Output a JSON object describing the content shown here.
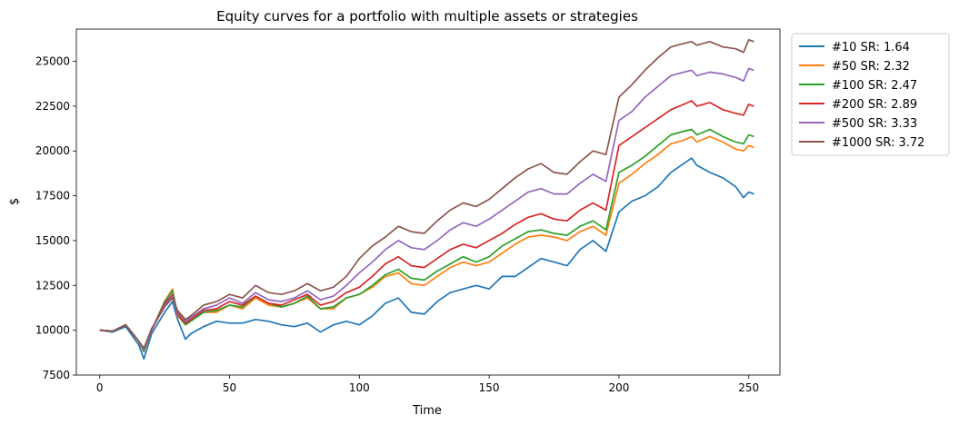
{
  "chart_data": {
    "type": "line",
    "title": "Equity curves for a portfolio with multiple assets or strategies",
    "xlabel": "Time",
    "ylabel": "$",
    "xlim": [
      -9,
      262
    ],
    "ylim": [
      7500,
      26800
    ],
    "xticks": [
      0,
      50,
      100,
      150,
      200,
      250
    ],
    "yticks": [
      7500,
      10000,
      12500,
      15000,
      17500,
      20000,
      22500,
      25000
    ],
    "grid": false,
    "legend_position": "outside-top-right",
    "x_points": [
      0,
      5,
      10,
      15,
      17,
      20,
      25,
      28,
      30,
      33,
      35,
      40,
      45,
      50,
      55,
      60,
      65,
      70,
      75,
      80,
      85,
      90,
      95,
      100,
      105,
      110,
      115,
      120,
      125,
      130,
      135,
      140,
      145,
      150,
      155,
      160,
      165,
      170,
      175,
      180,
      185,
      190,
      195,
      200,
      205,
      210,
      215,
      220,
      225,
      228,
      230,
      235,
      240,
      245,
      248,
      250,
      252
    ],
    "series": [
      {
        "name": "#10 SR: 1.64",
        "color": "#1f77b4",
        "values": [
          10000,
          9900,
          10200,
          9200,
          8400,
          9800,
          11000,
          11600,
          10600,
          9500,
          9800,
          10200,
          10500,
          10400,
          10400,
          10600,
          10500,
          10300,
          10200,
          10400,
          9900,
          10300,
          10500,
          10300,
          10800,
          11500,
          11800,
          11000,
          10900,
          11600,
          12100,
          12300,
          12500,
          12300,
          13000,
          13000,
          13500,
          14000,
          13800,
          13600,
          14500,
          15000,
          14400,
          16600,
          17200,
          17500,
          18000,
          18800,
          19300,
          19600,
          19200,
          18800,
          18500,
          18000,
          17400,
          17700,
          17600
        ]
      },
      {
        "name": "#50 SR: 2.32",
        "color": "#ff7f0e",
        "values": [
          10000,
          9950,
          10300,
          9400,
          8800,
          10000,
          11600,
          12300,
          10800,
          10300,
          10500,
          11000,
          11000,
          11400,
          11200,
          11800,
          11400,
          11300,
          11500,
          11800,
          11200,
          11200,
          11800,
          12000,
          12400,
          13000,
          13200,
          12600,
          12500,
          13000,
          13500,
          13800,
          13600,
          13800,
          14300,
          14800,
          15200,
          15300,
          15200,
          15000,
          15500,
          15800,
          15300,
          18200,
          18700,
          19300,
          19800,
          20400,
          20600,
          20800,
          20500,
          20800,
          20500,
          20100,
          20000,
          20300,
          20200
        ]
      },
      {
        "name": "#100 SR: 2.47",
        "color": "#2ca02c",
        "values": [
          10000,
          9950,
          10300,
          9400,
          8800,
          10000,
          11600,
          12200,
          10900,
          10300,
          10500,
          11000,
          11100,
          11400,
          11300,
          11900,
          11500,
          11300,
          11500,
          11900,
          11200,
          11300,
          11800,
          12000,
          12500,
          13100,
          13400,
          12900,
          12800,
          13300,
          13700,
          14100,
          13800,
          14100,
          14700,
          15100,
          15500,
          15600,
          15400,
          15300,
          15800,
          16100,
          15600,
          18800,
          19200,
          19700,
          20300,
          20900,
          21100,
          21200,
          20900,
          21200,
          20800,
          20500,
          20400,
          20900,
          20800
        ]
      },
      {
        "name": "#200 SR: 2.89",
        "color": "#d62728",
        "values": [
          10000,
          9950,
          10300,
          9400,
          8900,
          10000,
          11500,
          12000,
          10900,
          10400,
          10600,
          11100,
          11200,
          11600,
          11400,
          11900,
          11500,
          11400,
          11700,
          12000,
          11400,
          11600,
          12100,
          12400,
          13000,
          13700,
          14100,
          13600,
          13500,
          14000,
          14500,
          14800,
          14600,
          15000,
          15400,
          15900,
          16300,
          16500,
          16200,
          16100,
          16700,
          17100,
          16700,
          20300,
          20800,
          21300,
          21800,
          22300,
          22600,
          22800,
          22500,
          22700,
          22300,
          22100,
          22000,
          22600,
          22500
        ]
      },
      {
        "name": "#500 SR: 3.33",
        "color": "#9467bd",
        "values": [
          10000,
          9950,
          10300,
          9400,
          8900,
          10000,
          11400,
          11900,
          11000,
          10500,
          10700,
          11200,
          11400,
          11800,
          11500,
          12100,
          11700,
          11600,
          11800,
          12200,
          11700,
          11900,
          12500,
          13200,
          13800,
          14500,
          15000,
          14600,
          14500,
          15000,
          15600,
          16000,
          15800,
          16200,
          16700,
          17200,
          17700,
          17900,
          17600,
          17600,
          18200,
          18700,
          18300,
          21700,
          22200,
          23000,
          23600,
          24200,
          24400,
          24500,
          24200,
          24400,
          24300,
          24100,
          23900,
          24600,
          24500
        ]
      },
      {
        "name": "#1000 SR: 3.72",
        "color": "#8c564b",
        "values": [
          10000,
          9950,
          10300,
          9400,
          9000,
          10100,
          11300,
          11800,
          11100,
          10600,
          10800,
          11400,
          11600,
          12000,
          11800,
          12500,
          12100,
          12000,
          12200,
          12600,
          12200,
          12400,
          13000,
          14000,
          14700,
          15200,
          15800,
          15500,
          15400,
          16100,
          16700,
          17100,
          16900,
          17300,
          17900,
          18500,
          19000,
          19300,
          18800,
          18700,
          19400,
          20000,
          19800,
          23000,
          23700,
          24500,
          25200,
          25800,
          26000,
          26100,
          25900,
          26100,
          25800,
          25700,
          25500,
          26200,
          26100
        ]
      }
    ]
  }
}
